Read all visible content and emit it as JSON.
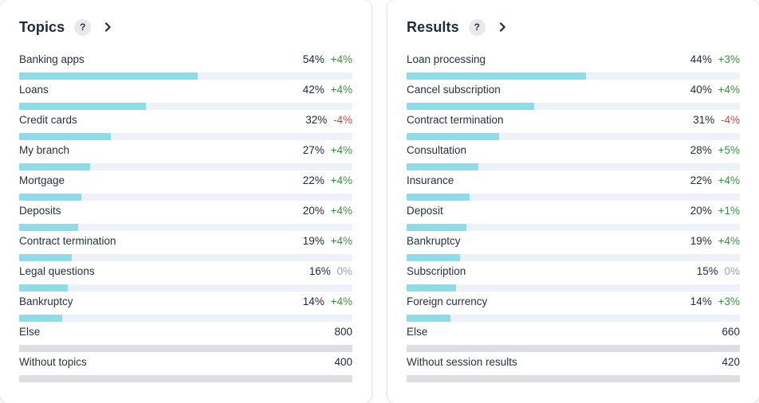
{
  "colors": {
    "title": "#1d2b3a",
    "text": "#27313d",
    "bar_fill": "#8bdde9",
    "bar_track": "#edf2fa",
    "bar_muted": "#dcdee2",
    "delta_up": "#3c9142",
    "delta_down": "#cd4a45",
    "delta_zero": "#9aa1a9"
  },
  "help_icon_glyph": "?",
  "panels": [
    {
      "title": "Topics",
      "rows": [
        {
          "label": "Banking apps",
          "value": "54%",
          "delta": "+4%",
          "trend": "up",
          "bar": 53.5
        },
        {
          "label": "Loans",
          "value": "42%",
          "delta": "+4%",
          "trend": "up",
          "bar": 38.0
        },
        {
          "label": "Credit cards",
          "value": "32%",
          "delta": "-4%",
          "trend": "down",
          "bar": 27.5
        },
        {
          "label": "My branch",
          "value": "27%",
          "delta": "+4%",
          "trend": "up",
          "bar": 21.4
        },
        {
          "label": "Mortgage",
          "value": "22%",
          "delta": "+4%",
          "trend": "up",
          "bar": 18.7
        },
        {
          "label": "Deposits",
          "value": "20%",
          "delta": "+4%",
          "trend": "up",
          "bar": 17.7
        },
        {
          "label": "Contract termination",
          "value": "19%",
          "delta": "+4%",
          "trend": "up",
          "bar": 15.8
        },
        {
          "label": "Legal questions",
          "value": "16%",
          "delta": "0%",
          "trend": "zero",
          "bar": 14.5
        },
        {
          "label": "Bankruptcy",
          "value": "14%",
          "delta": "+4%",
          "trend": "up",
          "bar": 13.0
        },
        {
          "label": "Else",
          "value": "800",
          "delta": "",
          "trend": "none",
          "bar": 100,
          "muted": true
        },
        {
          "label": "Without topics",
          "value": "400",
          "delta": "",
          "trend": "none",
          "bar": 100,
          "muted": true
        }
      ]
    },
    {
      "title": "Results",
      "rows": [
        {
          "label": "Loan processing",
          "value": "44%",
          "delta": "+3%",
          "trend": "up",
          "bar": 53.8
        },
        {
          "label": "Cancel subscription",
          "value": "40%",
          "delta": "+4%",
          "trend": "up",
          "bar": 38.3
        },
        {
          "label": "Contract termination",
          "value": "31%",
          "delta": "-4%",
          "trend": "down",
          "bar": 27.8
        },
        {
          "label": "Consultation",
          "value": "28%",
          "delta": "+5%",
          "trend": "up",
          "bar": 21.5
        },
        {
          "label": "Insurance",
          "value": "22%",
          "delta": "+4%",
          "trend": "up",
          "bar": 18.9
        },
        {
          "label": "Deposit",
          "value": "20%",
          "delta": "+1%",
          "trend": "up",
          "bar": 17.9
        },
        {
          "label": "Bankruptcy",
          "value": "19%",
          "delta": "+4%",
          "trend": "up",
          "bar": 16.0
        },
        {
          "label": "Subscription",
          "value": "15%",
          "delta": "0%",
          "trend": "zero",
          "bar": 14.8
        },
        {
          "label": "Foreign currency",
          "value": "14%",
          "delta": "+3%",
          "trend": "up",
          "bar": 13.2
        },
        {
          "label": "Else",
          "value": "660",
          "delta": "",
          "trend": "none",
          "bar": 100,
          "muted": true
        },
        {
          "label": "Without session results",
          "value": "420",
          "delta": "",
          "trend": "none",
          "bar": 100,
          "muted": true
        }
      ]
    }
  ]
}
